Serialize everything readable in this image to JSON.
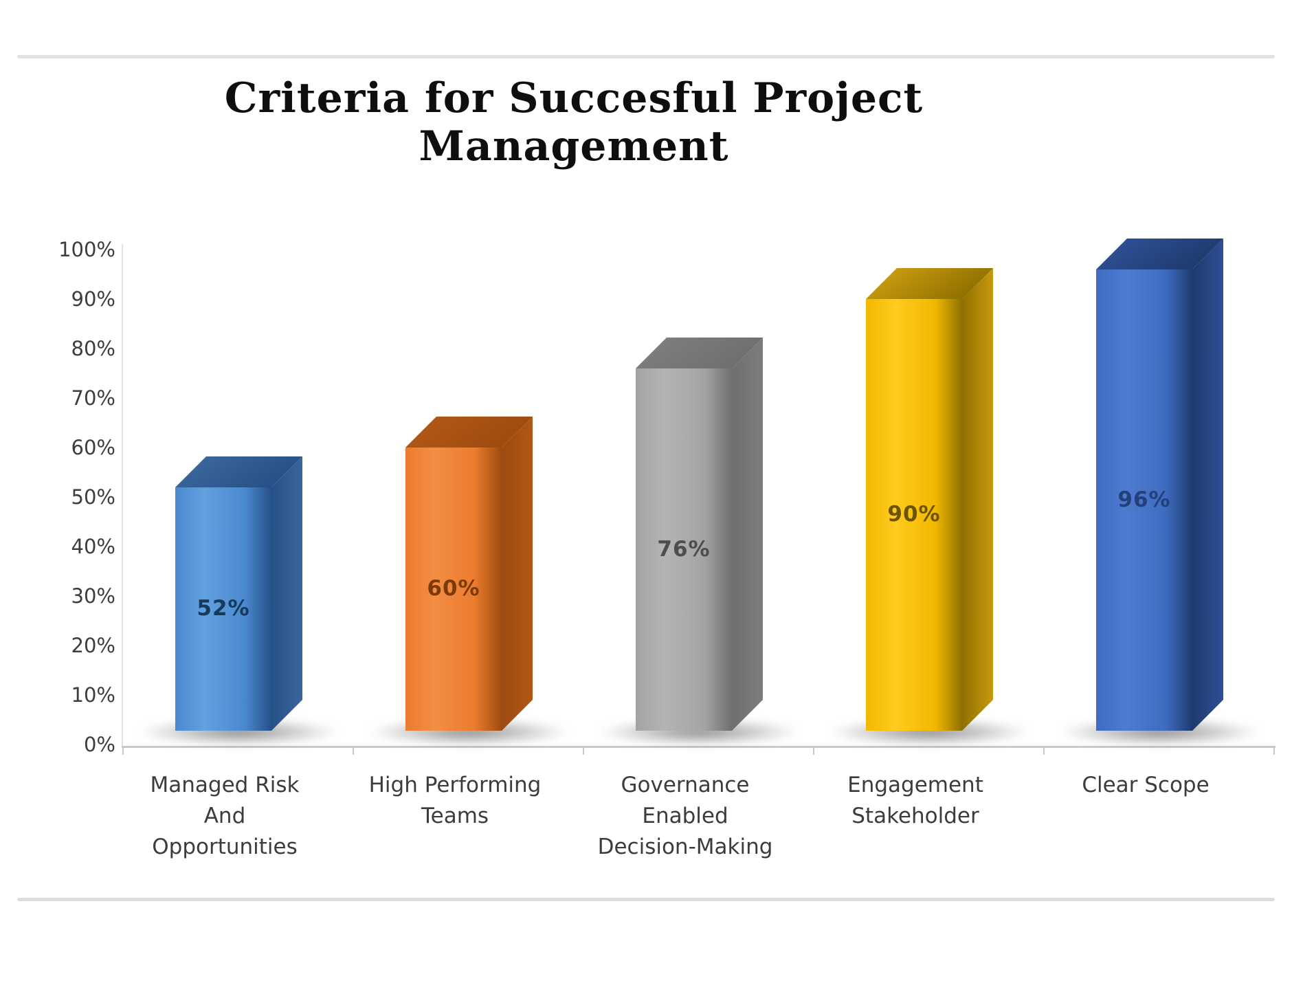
{
  "decor": {
    "rule_color": "#e2e2e2"
  },
  "chart_data": {
    "type": "bar",
    "title": "Criteria for Succesful Project Management",
    "xlabel": "",
    "ylabel": "",
    "ylim": [
      0,
      100
    ],
    "ytick_step": 10,
    "yticks": [
      {
        "value": 100,
        "label": "100%"
      },
      {
        "value": 90,
        "label": "90%"
      },
      {
        "value": 80,
        "label": "80%"
      },
      {
        "value": 70,
        "label": "70%"
      },
      {
        "value": 60,
        "label": "60%"
      },
      {
        "value": 50,
        "label": "50%"
      },
      {
        "value": 40,
        "label": "40%"
      },
      {
        "value": 30,
        "label": "30%"
      },
      {
        "value": 20,
        "label": "20%"
      },
      {
        "value": 10,
        "label": "10%"
      },
      {
        "value": 0,
        "label": "0%"
      }
    ],
    "categories": [
      [
        "Managed Risk",
        "And",
        "Opportunities"
      ],
      [
        "High Performing",
        "Teams"
      ],
      [
        "Governance",
        "Enabled",
        "Decision-Making"
      ],
      [
        "Engagement",
        "Stakeholder"
      ],
      [
        "Clear Scope"
      ]
    ],
    "values": [
      52,
      60,
      76,
      90,
      96
    ],
    "value_labels": [
      "52%",
      "60%",
      "76%",
      "90%",
      "96%"
    ],
    "bar_style": "3d-box",
    "grid": false,
    "legend": false,
    "colors": [
      {
        "front": "#4a89cf",
        "front_hi": "#62a0de",
        "top": "#3a669c",
        "side": "#265088",
        "label": "#16395c"
      },
      {
        "front": "#ec7b2d",
        "front_hi": "#f28e45",
        "top": "#b05716",
        "side": "#9d4b10",
        "label": "#7e3a06"
      },
      {
        "front": "#a3a3a3",
        "front_hi": "#b4b4b4",
        "top": "#7d7d7d",
        "side": "#6f6f6f",
        "label": "#4d4d4d"
      },
      {
        "front": "#f2b800",
        "front_hi": "#ffcb1f",
        "top": "#c79a0e",
        "side": "#8f7000",
        "label": "#6b5300"
      },
      {
        "front": "#3f6cc0",
        "front_hi": "#4d7bd0",
        "top": "#2d4f93",
        "side": "#1e3a6e",
        "label": "#23407a"
      }
    ]
  }
}
